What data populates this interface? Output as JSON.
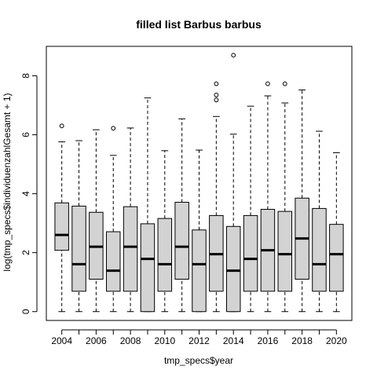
{
  "chart_data": {
    "type": "boxplot",
    "title": "filled list Barbus barbus",
    "xlabel": "tmp_specs$year",
    "ylabel": "log(tmp_specs$individuenzahlGesamt + 1)",
    "ylim": [
      -0.3,
      9.0
    ],
    "y_ticks": [
      0,
      2,
      4,
      6,
      8
    ],
    "x_tick_labels": [
      "2004",
      "2006",
      "2008",
      "2010",
      "2012",
      "2014",
      "2016",
      "2018",
      "2020"
    ],
    "box_fill": "#d3d3d3",
    "grid": false,
    "categories": [
      "2004",
      "2005",
      "2006",
      "2007",
      "2008",
      "2009",
      "2010",
      "2011",
      "2012",
      "2013",
      "2014",
      "2015",
      "2016",
      "2017",
      "2018",
      "2019",
      "2020"
    ],
    "boxes": [
      {
        "year": "2004",
        "lower_whisker": 0,
        "q1": 2.08,
        "median": 2.6,
        "q3": 3.69,
        "upper_whisker": 5.76,
        "outliers": [
          6.3
        ]
      },
      {
        "year": "2005",
        "lower_whisker": 0,
        "q1": 0.69,
        "median": 1.61,
        "q3": 3.58,
        "upper_whisker": 5.8,
        "outliers": []
      },
      {
        "year": "2006",
        "lower_whisker": 0,
        "q1": 1.1,
        "median": 2.2,
        "q3": 3.37,
        "upper_whisker": 6.17,
        "outliers": []
      },
      {
        "year": "2007",
        "lower_whisker": 0,
        "q1": 0.69,
        "median": 1.39,
        "q3": 2.71,
        "upper_whisker": 5.3,
        "outliers": [
          6.22
        ]
      },
      {
        "year": "2008",
        "lower_whisker": 0,
        "q1": 0.69,
        "median": 2.2,
        "q3": 3.56,
        "upper_whisker": 6.23,
        "outliers": []
      },
      {
        "year": "2009",
        "lower_whisker": 0,
        "q1": 0,
        "median": 1.79,
        "q3": 2.98,
        "upper_whisker": 7.25,
        "outliers": []
      },
      {
        "year": "2010",
        "lower_whisker": 0,
        "q1": 0.69,
        "median": 1.61,
        "q3": 3.16,
        "upper_whisker": 5.46,
        "outliers": []
      },
      {
        "year": "2011",
        "lower_whisker": 0,
        "q1": 1.1,
        "median": 2.2,
        "q3": 3.71,
        "upper_whisker": 6.54,
        "outliers": []
      },
      {
        "year": "2012",
        "lower_whisker": 0,
        "q1": 0,
        "median": 1.61,
        "q3": 2.77,
        "upper_whisker": 5.48,
        "outliers": []
      },
      {
        "year": "2013",
        "lower_whisker": 0,
        "q1": 0.69,
        "median": 1.95,
        "q3": 3.26,
        "upper_whisker": 6.62,
        "outliers": [
          7.18,
          7.35,
          7.73
        ]
      },
      {
        "year": "2014",
        "lower_whisker": 0,
        "q1": 0,
        "median": 1.39,
        "q3": 2.89,
        "upper_whisker": 6.02,
        "outliers": [
          8.7
        ]
      },
      {
        "year": "2015",
        "lower_whisker": 0,
        "q1": 0.69,
        "median": 1.79,
        "q3": 3.26,
        "upper_whisker": 6.97,
        "outliers": []
      },
      {
        "year": "2016",
        "lower_whisker": 0,
        "q1": 0.69,
        "median": 2.08,
        "q3": 3.47,
        "upper_whisker": 7.32,
        "outliers": [
          7.73
        ]
      },
      {
        "year": "2017",
        "lower_whisker": 0,
        "q1": 0.69,
        "median": 1.95,
        "q3": 3.4,
        "upper_whisker": 7.08,
        "outliers": [
          7.73
        ]
      },
      {
        "year": "2018",
        "lower_whisker": 0,
        "q1": 1.1,
        "median": 2.48,
        "q3": 3.85,
        "upper_whisker": 7.52,
        "outliers": []
      },
      {
        "year": "2019",
        "lower_whisker": 0,
        "q1": 0.69,
        "median": 1.61,
        "q3": 3.5,
        "upper_whisker": 6.12,
        "outliers": []
      },
      {
        "year": "2020",
        "lower_whisker": 0,
        "q1": 0.69,
        "median": 1.95,
        "q3": 2.96,
        "upper_whisker": 5.39,
        "outliers": []
      }
    ]
  }
}
